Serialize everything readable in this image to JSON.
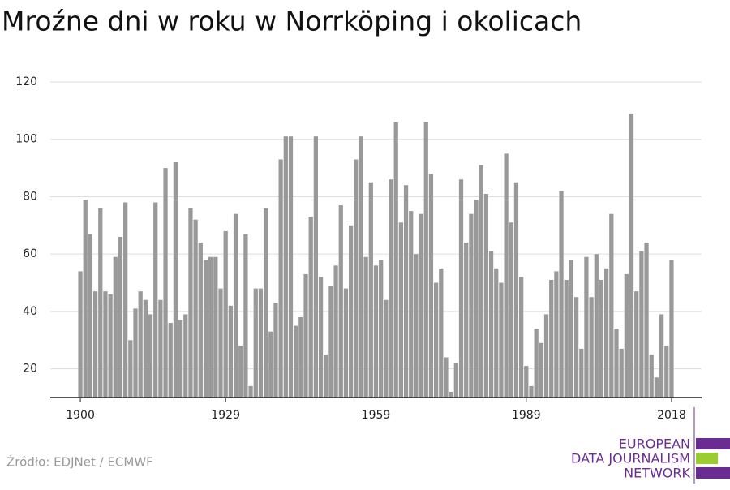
{
  "chart_data": {
    "type": "bar",
    "title": "Mroźne dni w roku w Norrköping i okolicach",
    "x": [
      1900,
      1901,
      1902,
      1903,
      1904,
      1905,
      1906,
      1907,
      1908,
      1909,
      1910,
      1911,
      1912,
      1913,
      1914,
      1915,
      1916,
      1917,
      1918,
      1919,
      1920,
      1921,
      1922,
      1923,
      1924,
      1925,
      1926,
      1927,
      1928,
      1929,
      1930,
      1931,
      1932,
      1933,
      1934,
      1935,
      1936,
      1937,
      1938,
      1939,
      1940,
      1941,
      1942,
      1943,
      1944,
      1945,
      1946,
      1947,
      1948,
      1949,
      1950,
      1951,
      1952,
      1953,
      1954,
      1955,
      1956,
      1957,
      1958,
      1959,
      1960,
      1961,
      1962,
      1963,
      1964,
      1965,
      1966,
      1967,
      1968,
      1969,
      1970,
      1971,
      1972,
      1973,
      1974,
      1975,
      1976,
      1977,
      1978,
      1979,
      1980,
      1981,
      1982,
      1983,
      1984,
      1985,
      1986,
      1987,
      1988,
      1989,
      1990,
      1991,
      1992,
      1993,
      1994,
      1995,
      1996,
      1997,
      1998,
      1999,
      2000,
      2001,
      2002,
      2003,
      2004,
      2005,
      2006,
      2007,
      2008,
      2009,
      2010,
      2011,
      2012,
      2013,
      2014,
      2015,
      2016,
      2017,
      2018
    ],
    "values": [
      54,
      79,
      67,
      47,
      76,
      47,
      46,
      59,
      66,
      78,
      30,
      41,
      47,
      44,
      39,
      78,
      44,
      90,
      36,
      92,
      37,
      39,
      76,
      72,
      64,
      58,
      59,
      59,
      48,
      68,
      42,
      74,
      28,
      67,
      14,
      48,
      48,
      76,
      33,
      43,
      93,
      101,
      101,
      35,
      38,
      53,
      73,
      101,
      52,
      25,
      49,
      56,
      77,
      48,
      70,
      93,
      101,
      59,
      85,
      56,
      58,
      44,
      86,
      106,
      71,
      84,
      75,
      60,
      74,
      106,
      88,
      50,
      55,
      24,
      12,
      22,
      86,
      64,
      74,
      79,
      91,
      81,
      61,
      55,
      50,
      95,
      71,
      85,
      52,
      21,
      14,
      34,
      29,
      39,
      51,
      54,
      82,
      51,
      58,
      45,
      27,
      59,
      45,
      60,
      51,
      55,
      74,
      34,
      27,
      53,
      109,
      47,
      61,
      64,
      25,
      17,
      39,
      28,
      58
    ],
    "color": "#999999",
    "xlim": [
      1894,
      2024
    ],
    "xticks": [
      1900,
      1929,
      1959,
      1989,
      2018
    ],
    "ylim": [
      10,
      120
    ],
    "yticks": [
      20,
      40,
      60,
      80,
      100,
      120
    ],
    "grid": true,
    "source": "Źródło: EDJNet / ECMWF",
    "logo": [
      "EUROPEAN",
      "DATA JOURNALISM",
      "NETWORK"
    ]
  }
}
